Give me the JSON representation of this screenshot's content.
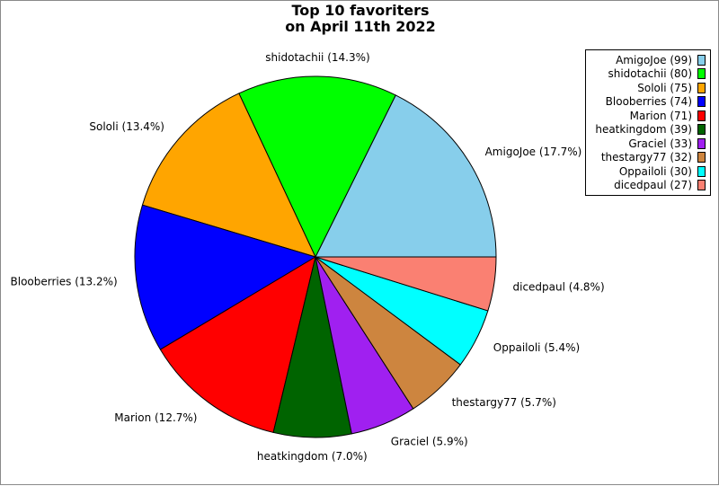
{
  "chart_data": {
    "type": "pie",
    "title_lines": [
      "Top 10 favoriters",
      "on April 11th 2022"
    ],
    "slices": [
      {
        "name": "AmigoJoe",
        "value": 99,
        "percent": "17.7%",
        "color": "#87ceeb"
      },
      {
        "name": "shidotachii",
        "value": 80,
        "percent": "14.3%",
        "color": "#00ff00"
      },
      {
        "name": "Sololi",
        "value": 75,
        "percent": "13.4%",
        "color": "#ffa500"
      },
      {
        "name": "Blooberries",
        "value": 74,
        "percent": "13.2%",
        "color": "#0000ff"
      },
      {
        "name": "Marion",
        "value": 71,
        "percent": "12.7%",
        "color": "#ff0000"
      },
      {
        "name": "heatkingdom",
        "value": 39,
        "percent": "7.0%",
        "color": "#006400"
      },
      {
        "name": "Graciel",
        "value": 33,
        "percent": "5.9%",
        "color": "#a020f0"
      },
      {
        "name": "thestargy77",
        "value": 32,
        "percent": "5.7%",
        "color": "#cd853f"
      },
      {
        "name": "Oppailoli",
        "value": 30,
        "percent": "5.4%",
        "color": "#00ffff"
      },
      {
        "name": "dicedpaul",
        "value": 27,
        "percent": "4.8%",
        "color": "#fa8072"
      }
    ],
    "legend_position": "top-right"
  }
}
